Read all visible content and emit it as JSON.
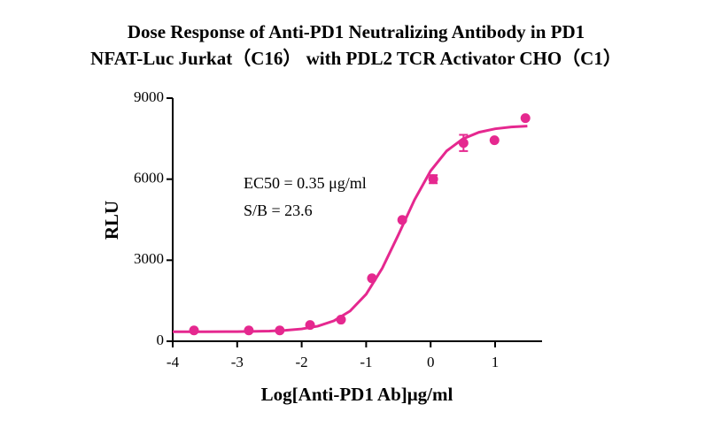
{
  "chart_data": {
    "type": "scatter",
    "title": "Dose Response of Anti-PD1 Neutralizing Antibody in PD1",
    "subtitle": "NFAT-Luc Jurkat（C16） with PDL2 TCR Activator CHO（C1）",
    "x_label": "Log[Anti-PD1 Ab]μg/ml",
    "y_label": "RLU",
    "annotations": [
      "EC50 = 0.35 μg/ml",
      "S/B = 23.6"
    ],
    "xlim": [
      -4,
      1.75
    ],
    "xticks": [
      -4,
      -3,
      -2,
      -1,
      0,
      1
    ],
    "ylim": [
      0,
      9000
    ],
    "yticks": [
      0,
      3000,
      6000,
      9000
    ],
    "color": "#e5288f",
    "points": {
      "x": [
        -3.67,
        -2.82,
        -2.34,
        -1.87,
        -1.39,
        -0.91,
        -0.44,
        0.04,
        0.51,
        0.99,
        1.47
      ],
      "values": [
        400,
        400,
        400,
        600,
        800,
        2330,
        4490,
        6000,
        7340,
        7440,
        8260
      ],
      "errors": [
        null,
        null,
        null,
        null,
        null,
        null,
        null,
        150,
        300,
        null,
        null
      ]
    },
    "fit": {
      "x": [
        -4,
        -3.5,
        -3,
        -2.5,
        -2.25,
        -2,
        -1.75,
        -1.5,
        -1.25,
        -1,
        -0.75,
        -0.5,
        -0.25,
        0,
        0.25,
        0.5,
        0.75,
        1,
        1.25,
        1.5
      ],
      "values": [
        350,
        352,
        357,
        377,
        404,
        456,
        559,
        755,
        1117,
        1741,
        2702,
        3942,
        5235,
        6308,
        7049,
        7491,
        7736,
        7865,
        7932,
        7966
      ]
    }
  }
}
